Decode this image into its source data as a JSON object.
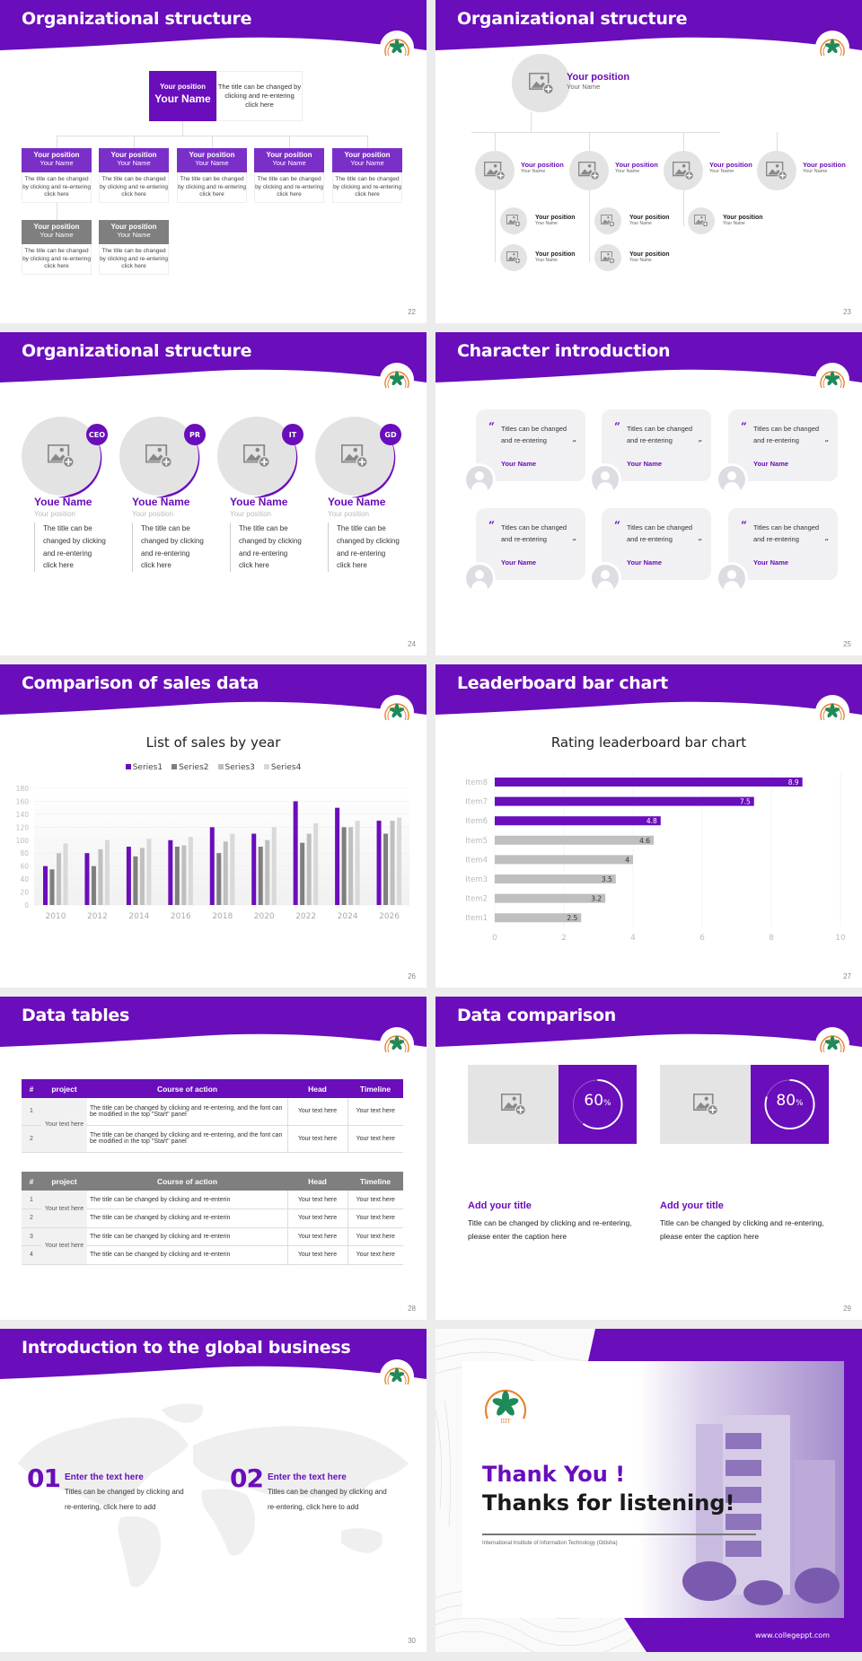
{
  "colors": {
    "primary": "#6a0dbb",
    "gray_dark": "#7f7f7f",
    "gray_mid": "#a6a6a6",
    "gray_light": "#c8c8c8",
    "gray_lighter": "#d9d9d9",
    "placeholder_bg": "#e3e3e3",
    "gutter": "#ececec"
  },
  "slides": {
    "s22": {
      "title": "Organizational structure",
      "page": "22",
      "top": {
        "position": "Your position",
        "name": "Your Name",
        "desc": "The title can be changed by clicking and re-entering click here"
      },
      "boxes": [
        {
          "position": "Your position",
          "name": "Your Name",
          "desc": "The title can be changed by clicking and re-entering click here",
          "color": "purple"
        },
        {
          "position": "Your position",
          "name": "Your Name",
          "desc": "The title can be changed by clicking and re-entering click here",
          "color": "purple"
        },
        {
          "position": "Your position",
          "name": "Your Name",
          "desc": "The title can be changed by clicking and re-entering click here",
          "color": "purple"
        },
        {
          "position": "Your position",
          "name": "Your Name",
          "desc": "The title can be changed by clicking and re-entering click here",
          "color": "purple"
        },
        {
          "position": "Your position",
          "name": "Your Name",
          "desc": "The title can be changed by clicking and re-entering click here",
          "color": "purple"
        },
        {
          "position": "Your position",
          "name": "Your Name",
          "desc": "The title can be changed by clicking and re-entering click here",
          "color": "gray"
        },
        {
          "position": "Your position",
          "name": "Your Name",
          "desc": "The title can be changed by clicking and re-entering click here",
          "color": "gray"
        }
      ]
    },
    "s23": {
      "title": "Organizational structure",
      "page": "23",
      "top": {
        "position": "Your position",
        "name": "Your Name"
      },
      "level1": [
        {
          "position": "Your position",
          "name": "Your Name"
        },
        {
          "position": "Your position",
          "name": "Your Name"
        },
        {
          "position": "Your position",
          "name": "Your Name"
        },
        {
          "position": "Your position",
          "name": "Your Name"
        }
      ],
      "level2": [
        {
          "position": "Your position",
          "name": "Your Name"
        },
        {
          "position": "Your position",
          "name": "Your Name"
        },
        {
          "position": "Your position",
          "name": "Your Name"
        },
        {
          "position": "Your position",
          "name": "Your Name"
        },
        {
          "position": "Your position",
          "name": "Your Name"
        }
      ]
    },
    "s24": {
      "title": "Organizational structure",
      "page": "24",
      "people": [
        {
          "badge": "CEO",
          "name": "Youe Name",
          "position": "Your position",
          "desc": "The title can be changed by clicking and re-entering click here"
        },
        {
          "badge": "PR",
          "name": "Youe Name",
          "position": "Your position",
          "desc": "The title can be changed by clicking and re-entering click here"
        },
        {
          "badge": "IT",
          "name": "Youe Name",
          "position": "Your position",
          "desc": "The title can be changed by clicking and re-entering click here"
        },
        {
          "badge": "GD",
          "name": "Youe Name",
          "position": "Your position",
          "desc": "The title can be changed by clicking and re-entering click here"
        }
      ]
    },
    "s25": {
      "title": "Character introduction",
      "page": "25",
      "quote_open": "“",
      "quote_close": "”",
      "cards": [
        {
          "text": "Titles can be changed and re-entering",
          "name": "Your Name"
        },
        {
          "text": "Titles can be changed and re-entering",
          "name": "Your Name"
        },
        {
          "text": "Titles can be changed and re-entering",
          "name": "Your Name"
        },
        {
          "text": "Titles can be changed and re-entering",
          "name": "Your Name"
        },
        {
          "text": "Titles can be changed and re-entering",
          "name": "Your Name"
        },
        {
          "text": "Titles can be changed and re-entering",
          "name": "Your Name"
        }
      ]
    },
    "s26": {
      "title": "Comparison of sales data",
      "page": "26"
    },
    "s27": {
      "title": "Leaderboard bar chart",
      "page": "27"
    },
    "s28": {
      "title": "Data tables",
      "page": "28",
      "table1": {
        "headers": [
          "#",
          "project",
          "Course of action",
          "Head",
          "Timeline"
        ],
        "project": "Your text here",
        "rows": [
          {
            "n": "1",
            "action": "The title can be changed by clicking and re-entering, and the font can be modified in the top \"Start\" panel",
            "head": "Your text here",
            "timeline": "Your text here"
          },
          {
            "n": "2",
            "action": "The title can be changed by clicking and re-entering, and the font can be modified in the top \"Start\" panel",
            "head": "Your text here",
            "timeline": "Your text here"
          }
        ]
      },
      "table2": {
        "headers": [
          "#",
          "project",
          "Course of action",
          "Head",
          "Timeline"
        ],
        "projects": [
          "Your text here",
          "Your text here"
        ],
        "rows": [
          {
            "n": "1",
            "action": "The title can be changed by clicking and re-enterin",
            "head": "Your text here",
            "timeline": "Your text here"
          },
          {
            "n": "2",
            "action": "The title can be changed by clicking and re-enterin",
            "head": "Your text here",
            "timeline": "Your text here"
          },
          {
            "n": "3",
            "action": "The title can be changed by clicking and re-enterin",
            "head": "Your text here",
            "timeline": "Your text here"
          },
          {
            "n": "4",
            "action": "The title can be changed by clicking and re-enterin",
            "head": "Your text here",
            "timeline": "Your text here"
          }
        ]
      }
    },
    "s29": {
      "title": "Data comparison",
      "page": "29",
      "items": [
        {
          "value": "60",
          "unit": "%",
          "percent": 60,
          "title": "Add your title",
          "desc": "Title can be changed by clicking and re-entering, please enter the caption here"
        },
        {
          "value": "80",
          "unit": "%",
          "percent": 80,
          "title": "Add your title",
          "desc": "Title can be changed by clicking and re-entering, please enter the caption here"
        }
      ]
    },
    "s30": {
      "title": "Introduction to the global business",
      "page": "30",
      "items": [
        {
          "num": "01",
          "title": "Enter the text here",
          "desc": "Titles can be changed by clicking and re-entering, click here to add"
        },
        {
          "num": "02",
          "title": "Enter the text here",
          "desc": "Titles can be changed by clicking and re-entering, click here to add"
        }
      ]
    },
    "s31": {
      "thank_you": "Thank You !",
      "thanks": "Thanks for listening!",
      "institute": "International Institute of Information Technology (Odisha)",
      "website": "www.collegeppt.com",
      "logo_text": "IIIT"
    }
  },
  "chart_data": [
    {
      "type": "bar",
      "title": "List of sales by year",
      "categories": [
        "2010",
        "2012",
        "2014",
        "2016",
        "2018",
        "2020",
        "2022",
        "2024",
        "2026"
      ],
      "series": [
        {
          "name": "Series1",
          "color": "#6a0dbb",
          "values": [
            60,
            80,
            90,
            100,
            120,
            110,
            160,
            150,
            130
          ]
        },
        {
          "name": "Series2",
          "color": "#7f7f7f",
          "values": [
            55,
            60,
            75,
            90,
            80,
            90,
            96,
            120,
            110
          ]
        },
        {
          "name": "Series3",
          "color": "#bfbfbf",
          "values": [
            80,
            86,
            88,
            92,
            98,
            100,
            110,
            120,
            130
          ]
        },
        {
          "name": "Series4",
          "color": "#d9d9d9",
          "values": [
            95,
            100,
            102,
            105,
            110,
            120,
            126,
            130,
            135
          ]
        }
      ],
      "xlabel": "",
      "ylabel": "",
      "ylim": [
        0,
        180
      ],
      "yticks": [
        0,
        20,
        40,
        60,
        80,
        100,
        120,
        140,
        160,
        180
      ],
      "legend_position": "top",
      "grid": true
    },
    {
      "type": "bar",
      "orientation": "horizontal",
      "title": "Rating leaderboard bar chart",
      "categories": [
        "Item8",
        "Item7",
        "Item6",
        "Item5",
        "Item4",
        "Item3",
        "Item2",
        "Item1"
      ],
      "values": [
        8.9,
        7.5,
        4.8,
        4.6,
        4,
        3.5,
        3.2,
        2.5
      ],
      "labels": [
        "8.9",
        "7.5",
        "4.8",
        "4.6",
        "4",
        "3.5",
        "3.2",
        "2.5"
      ],
      "highlight_top": 3,
      "xlim": [
        0,
        10
      ],
      "xticks": [
        0,
        2,
        4,
        6,
        8,
        10
      ],
      "grid": true
    }
  ]
}
